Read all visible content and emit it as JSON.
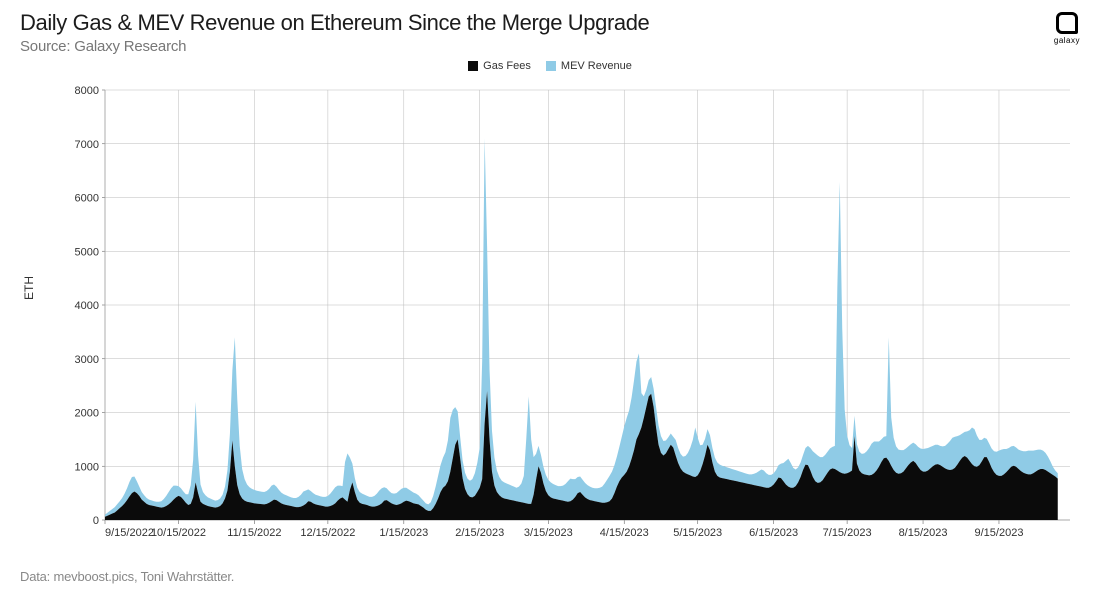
{
  "title": "Daily Gas & MEV Revenue on Ethereum Since the Merge Upgrade",
  "subtitle": "Source: Galaxy Research",
  "footer": "Data: mevboost.pics, Toni Wahrstätter.",
  "logo_text": "galaxy",
  "ylabel": "ETH",
  "legend": [
    {
      "label": "Gas Fees",
      "color": "#0b0b0b"
    },
    {
      "label": "MEV Revenue",
      "color": "#8fcbe6"
    }
  ],
  "chart": {
    "type": "area-stacked",
    "background_color": "#ffffff",
    "grid_color": "#bbbbbb",
    "axis_fontsize": 11,
    "title_fontsize": 22,
    "subtitle_fontsize": 15,
    "footer_fontsize": 13,
    "ylim": [
      0,
      8000
    ],
    "ytick_step": 1000,
    "x_ticks": [
      "9/15/2022",
      "10/15/2022",
      "11/15/2022",
      "12/15/2022",
      "1/15/2023",
      "2/15/2023",
      "3/15/2023",
      "4/15/2023",
      "5/15/2023",
      "6/15/2023",
      "7/15/2023",
      "8/15/2023",
      "9/15/2023"
    ],
    "x_tick_positions_days": [
      0,
      30,
      61,
      91,
      122,
      153,
      181,
      212,
      242,
      273,
      303,
      334,
      365
    ],
    "n_days": 395,
    "series": {
      "gas_fees": {
        "color": "#0b0b0b",
        "values": [
          60,
          80,
          100,
          120,
          140,
          180,
          220,
          260,
          310,
          370,
          440,
          500,
          530,
          500,
          450,
          380,
          340,
          300,
          280,
          270,
          260,
          250,
          240,
          230,
          240,
          260,
          290,
          330,
          380,
          420,
          450,
          430,
          380,
          320,
          280,
          300,
          420,
          700,
          500,
          340,
          300,
          280,
          260,
          250,
          240,
          230,
          240,
          260,
          310,
          400,
          550,
          900,
          1480,
          1000,
          650,
          480,
          400,
          360,
          340,
          330,
          320,
          310,
          305,
          300,
          295,
          290,
          300,
          320,
          350,
          380,
          370,
          340,
          310,
          290,
          280,
          270,
          260,
          250,
          240,
          240,
          250,
          270,
          300,
          350,
          340,
          310,
          290,
          280,
          270,
          260,
          250,
          250,
          260,
          280,
          310,
          360,
          400,
          420,
          380,
          340,
          560,
          700,
          520,
          380,
          320,
          300,
          290,
          280,
          260,
          250,
          250,
          260,
          280,
          310,
          360,
          370,
          340,
          310,
          290,
          280,
          290,
          310,
          340,
          360,
          350,
          330,
          310,
          300,
          290,
          260,
          230,
          190,
          170,
          170,
          220,
          300,
          400,
          520,
          600,
          640,
          720,
          900,
          1150,
          1400,
          1500,
          1150,
          780,
          580,
          480,
          430,
          420,
          450,
          520,
          600,
          760,
          1800,
          2400,
          1500,
          900,
          640,
          520,
          460,
          420,
          400,
          390,
          380,
          370,
          360,
          350,
          340,
          330,
          320,
          310,
          300,
          300,
          470,
          750,
          1000,
          880,
          680,
          540,
          460,
          420,
          400,
          390,
          380,
          370,
          360,
          350,
          340,
          350,
          380,
          430,
          500,
          520,
          470,
          420,
          390,
          370,
          360,
          350,
          340,
          330,
          320,
          320,
          330,
          350,
          400,
          500,
          620,
          720,
          790,
          840,
          900,
          1000,
          1140,
          1300,
          1500,
          1600,
          1720,
          1900,
          2100,
          2300,
          2350,
          2100,
          1720,
          1400,
          1250,
          1200,
          1240,
          1320,
          1400,
          1350,
          1200,
          1060,
          960,
          900,
          870,
          850,
          830,
          810,
          800,
          830,
          910,
          1040,
          1200,
          1400,
          1300,
          1070,
          900,
          820,
          790,
          780,
          770,
          760,
          750,
          740,
          730,
          720,
          710,
          700,
          690,
          680,
          670,
          660,
          650,
          640,
          630,
          620,
          610,
          600,
          600,
          620,
          660,
          720,
          790,
          780,
          720,
          660,
          620,
          600,
          600,
          630,
          700,
          800,
          930,
          1030,
          1020,
          920,
          800,
          720,
          690,
          700,
          740,
          810,
          880,
          940,
          960,
          950,
          920,
          890,
          870,
          860,
          870,
          890,
          920,
          1560,
          1050,
          920,
          870,
          850,
          840,
          830,
          840,
          870,
          920,
          990,
          1080,
          1150,
          1160,
          1100,
          1010,
          930,
          880,
          860,
          870,
          900,
          960,
          1020,
          1070,
          1100,
          1060,
          990,
          930,
          900,
          900,
          920,
          960,
          1000,
          1030,
          1040,
          1020,
          990,
          960,
          940,
          930,
          940,
          970,
          1030,
          1100,
          1160,
          1190,
          1160,
          1100,
          1040,
          1000,
          990,
          1020,
          1090,
          1170,
          1170,
          1080,
          970,
          890,
          840,
          820,
          820,
          850,
          890,
          940,
          990,
          1010,
          990,
          950,
          910,
          880,
          860,
          850,
          850,
          870,
          900,
          930,
          950,
          950,
          930,
          900,
          870,
          840,
          810,
          770,
          720,
          640,
          510,
          340,
          300
        ]
      },
      "mev_revenue": {
        "color": "#8fcbe6",
        "values": [
          40,
          55,
          70,
          85,
          100,
          115,
          130,
          150,
          180,
          220,
          270,
          300,
          280,
          220,
          170,
          140,
          120,
          110,
          100,
          95,
          90,
          90,
          100,
          120,
          150,
          190,
          230,
          260,
          260,
          220,
          180,
          160,
          150,
          160,
          200,
          350,
          700,
          1500,
          700,
          320,
          220,
          180,
          160,
          150,
          140,
          130,
          130,
          140,
          160,
          220,
          380,
          700,
          1300,
          2400,
          1600,
          900,
          550,
          400,
          320,
          280,
          260,
          250,
          240,
          235,
          230,
          230,
          240,
          260,
          290,
          280,
          250,
          220,
          200,
          190,
          180,
          170,
          160,
          160,
          170,
          190,
          220,
          260,
          250,
          220,
          200,
          190,
          180,
          175,
          170,
          170,
          180,
          200,
          230,
          270,
          300,
          280,
          240,
          210,
          700,
          900,
          600,
          350,
          260,
          220,
          200,
          190,
          180,
          170,
          170,
          180,
          200,
          230,
          270,
          280,
          250,
          220,
          200,
          190,
          200,
          220,
          250,
          270,
          260,
          240,
          220,
          210,
          200,
          190,
          170,
          150,
          130,
          120,
          120,
          160,
          230,
          320,
          420,
          500,
          560,
          620,
          760,
          1000,
          900,
          700,
          520,
          400,
          330,
          300,
          290,
          300,
          340,
          420,
          540,
          750,
          2200,
          5300,
          2700,
          1300,
          760,
          520,
          400,
          340,
          310,
          300,
          290,
          280,
          270,
          260,
          250,
          280,
          350,
          500,
          1200,
          2000,
          1200,
          700,
          480,
          380,
          330,
          310,
          300,
          290,
          280,
          270,
          260,
          250,
          260,
          280,
          320,
          380,
          420,
          380,
          330,
          300,
          290,
          280,
          270,
          260,
          250,
          240,
          240,
          250,
          270,
          300,
          360,
          420,
          470,
          500,
          520,
          560,
          640,
          760,
          900,
          1000,
          1040,
          1140,
          1300,
          1450,
          1500,
          640,
          400,
          320,
          300,
          310,
          340,
          380,
          360,
          310,
          270,
          240,
          220,
          210,
          200,
          290,
          280,
          270,
          280,
          320,
          400,
          520,
          680,
          920,
          700,
          480,
          360,
          310,
          290,
          280,
          270,
          260,
          250,
          240,
          230,
          225,
          220,
          215,
          210,
          205,
          200,
          195,
          190,
          185,
          180,
          180,
          190,
          210,
          240,
          280,
          320,
          310,
          270,
          240,
          220,
          210,
          210,
          230,
          270,
          340,
          440,
          520,
          460,
          370,
          310,
          280,
          270,
          280,
          310,
          360,
          420,
          480,
          520,
          510,
          470,
          430,
          400,
          390,
          390,
          400,
          430,
          3400,
          5400,
          2700,
          1200,
          700,
          500,
          420,
          380,
          360,
          350,
          360,
          390,
          440,
          510,
          580,
          590,
          540,
          470,
          420,
          400,
          400,
          2300,
          900,
          600,
          490,
          450,
          430,
          400,
          370,
          350,
          340,
          340,
          350,
          370,
          400,
          420,
          430,
          420,
          400,
          380,
          370,
          360,
          360,
          380,
          420,
          480,
          540,
          590,
          580,
          530,
          480,
          450,
          450,
          490,
          570,
          680,
          690,
          580,
          470,
          400,
          360,
          340,
          340,
          360,
          390,
          430,
          470,
          490,
          470,
          430,
          400,
          380,
          370,
          360,
          360,
          380,
          400,
          420,
          440,
          440,
          420,
          400,
          380,
          360,
          340,
          320,
          280,
          220,
          150,
          110,
          100
        ]
      }
    }
  }
}
